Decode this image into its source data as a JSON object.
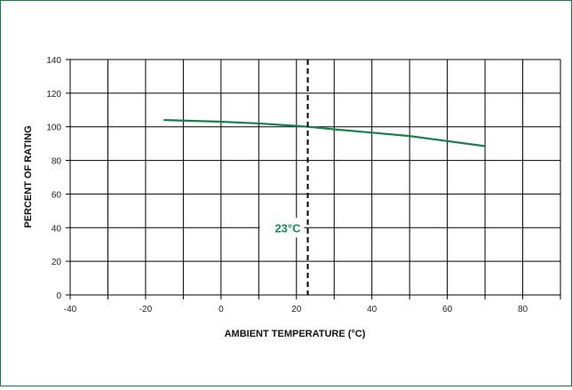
{
  "chart_data": {
    "type": "line",
    "title": "",
    "xlabel": "AMBIENT TEMPERATURE (°C)",
    "ylabel": "PERCENT OF RATING",
    "xlim": [
      -40,
      90
    ],
    "ylim": [
      0,
      140
    ],
    "x_ticks": [
      -40,
      -20,
      0,
      20,
      40,
      60,
      80
    ],
    "y_ticks": [
      0,
      20,
      40,
      60,
      80,
      100,
      120,
      140
    ],
    "x_grid_step": 10,
    "y_grid_step": 20,
    "grid": true,
    "series": [
      {
        "color": "#1a7f4f",
        "x": [
          -15,
          0,
          10,
          20,
          23,
          30,
          40,
          50,
          60,
          70
        ],
        "y": [
          104,
          103,
          102,
          100.5,
          100,
          98.5,
          96.5,
          94.5,
          91.5,
          88.5
        ]
      }
    ],
    "annotations": [
      {
        "text": "23°C",
        "x": 23,
        "style": "dashed-vertical-line",
        "color": "#1a8a52"
      }
    ]
  }
}
